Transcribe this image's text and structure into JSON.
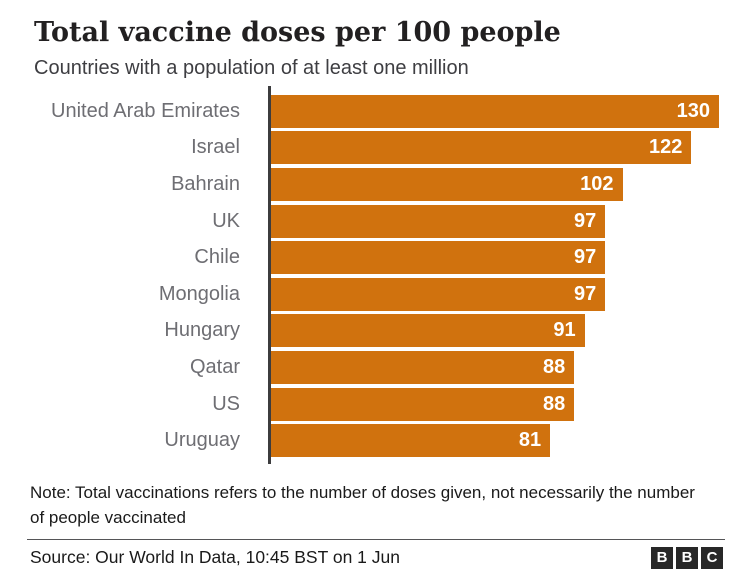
{
  "header": {
    "title": "Total vaccine doses per 100 people",
    "subtitle": "Countries with a population of at least one million"
  },
  "chart_data": {
    "type": "bar",
    "orientation": "horizontal",
    "categories": [
      "United Arab Emirates",
      "Israel",
      "Bahrain",
      "UK",
      "Chile",
      "Mongolia",
      "Hungary",
      "Qatar",
      "US",
      "Uruguay"
    ],
    "values": [
      130,
      122,
      102,
      97,
      97,
      97,
      91,
      88,
      88,
      81
    ],
    "xlim": [
      0,
      130
    ],
    "grid": false,
    "value_label_position": "inside-end",
    "bar_color": "#d0720e",
    "value_label_color": "#ffffff",
    "axis_line_color": "#3c3c3e",
    "category_label_color": "#6e6e73"
  },
  "footer": {
    "note": "Note: Total vaccinations refers to the number of doses given, not necessarily the number of people vaccinated",
    "source": "Source: Our World In Data, 10:45 BST on 1 Jun",
    "logo_letters": [
      "B",
      "B",
      "C"
    ]
  }
}
